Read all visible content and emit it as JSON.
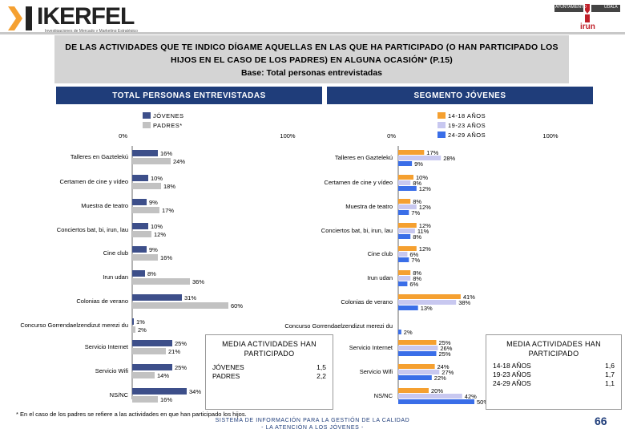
{
  "header": {
    "brand": "IKERFEL",
    "brand_tagline": "Investigaciones de Mercado y Marketing Estratégico",
    "crest_label_1": "AYUNTAMIENTO",
    "crest_label_2": "UDALA",
    "crest_city": "irun"
  },
  "question": {
    "line1": "DE LAS ACTIVIDADES QUE TE INDICO DÍGAME AQUELLAS EN LAS QUE HA PARTICIPADO (O HAN PARTICIPADO LOS",
    "line2": "HIJOS EN EL CASO DE LOS PADRES) EN ALGUNA OCASIÓN* (P.15)",
    "base": "Base: Total personas entrevistadas"
  },
  "segments": {
    "total": "TOTAL PERSONAS ENTREVISTADAS",
    "young": "SEGMENTO JÓVENES"
  },
  "colors": {
    "jovenes": "#3d4f8a",
    "padres": "#c2c2c2",
    "g14_18": "#f5a030",
    "g19_23": "#c8c8f0",
    "g24_29": "#3a6ee8",
    "navy": "#1f3d7a"
  },
  "chart_data": [
    {
      "type": "bar",
      "orientation": "horizontal",
      "title": "TOTAL PERSONAS ENTREVISTADAS",
      "xlim": [
        0,
        100
      ],
      "tick_labels": [
        "0%",
        "100%"
      ],
      "legend": "top-left",
      "categories": [
        "Talleres en Gaztelekú",
        "Certamen de cine y vídeo",
        "Muestra de teatro",
        "Conciertos bat, bi, irun, lau",
        "Cine club",
        "Irun udan",
        "Colonias de verano",
        "Concurso Gorrendaelzendizut merezi du",
        "Servicio Internet",
        "Servicio Wifi",
        "NS/NC"
      ],
      "series": [
        {
          "name": "JÓVENES",
          "values": [
            16,
            10,
            9,
            10,
            9,
            8,
            31,
            1,
            25,
            25,
            34
          ]
        },
        {
          "name": "PADRES*",
          "values": [
            24,
            18,
            17,
            12,
            16,
            36,
            60,
            2,
            21,
            14,
            16
          ]
        }
      ]
    },
    {
      "type": "bar",
      "orientation": "horizontal",
      "title": "SEGMENTO JÓVENES",
      "xlim": [
        0,
        100
      ],
      "tick_labels": [
        "0%",
        "100%"
      ],
      "legend": "top-right",
      "categories": [
        "Talleres en Gaztelekú",
        "Certamen de cine y vídeo",
        "Muestra de teatro",
        "Conciertos bat, bi, irun, lau",
        "Cine club",
        "Irun udan",
        "Colonias de verano",
        "Concurso Gorrendaelzendizut merezi du",
        "Servicio Internet",
        "Servicio Wifi",
        "NS/NC"
      ],
      "series": [
        {
          "name": "14-18 AÑOS",
          "values": [
            17,
            10,
            8,
            12,
            12,
            8,
            41,
            0,
            25,
            24,
            20
          ]
        },
        {
          "name": "19-23 AÑOS",
          "values": [
            28,
            8,
            12,
            11,
            6,
            8,
            38,
            0,
            26,
            27,
            42
          ]
        },
        {
          "name": "24-29 AÑOS",
          "values": [
            9,
            12,
            7,
            8,
            7,
            6,
            13,
            2,
            25,
            22,
            50
          ]
        }
      ],
      "value_labels": [
        [
          "17%",
          "28%",
          "9%"
        ],
        [
          "10%",
          "8%",
          "12%"
        ],
        [
          "8%",
          "12%",
          "7%"
        ],
        [
          "12%",
          "11%",
          "8%"
        ],
        [
          "12%",
          "6%",
          "7%"
        ],
        [
          "8%",
          "8%",
          "6%"
        ],
        [
          "41%",
          "38%",
          "13%"
        ],
        [
          "",
          "",
          "2%"
        ],
        [
          "25%",
          "26%",
          "25%"
        ],
        [
          "24%",
          "27%",
          "22%"
        ],
        [
          "20%",
          "42%",
          "50%"
        ]
      ]
    }
  ],
  "media_total": {
    "title1": "MEDIA ACTIVIDADES HAN",
    "title2": "PARTICIPADO",
    "rows": [
      {
        "label": "JÓVENES",
        "value": "1,5"
      },
      {
        "label": "PADRES",
        "value": "2,2"
      }
    ]
  },
  "media_young": {
    "title1": "MEDIA ACTIVIDADES HAN",
    "title2": "PARTICIPADO",
    "rows": [
      {
        "label": "14-18 AÑOS",
        "value": "1,6"
      },
      {
        "label": "19-23 AÑOS",
        "value": "1,7"
      },
      {
        "label": "24-29 AÑOS",
        "value": "1,1"
      }
    ]
  },
  "footnote": "* En el caso de los padres se refiere a las actividades en que han participado los hijos.",
  "source_line1": "SISTEMA DE INFORMACIÓN PARA LA GESTIÓN DE LA CALIDAD",
  "source_line2": "- LA ATENCIÓN A LOS JÓVENES -",
  "page_number": "66"
}
